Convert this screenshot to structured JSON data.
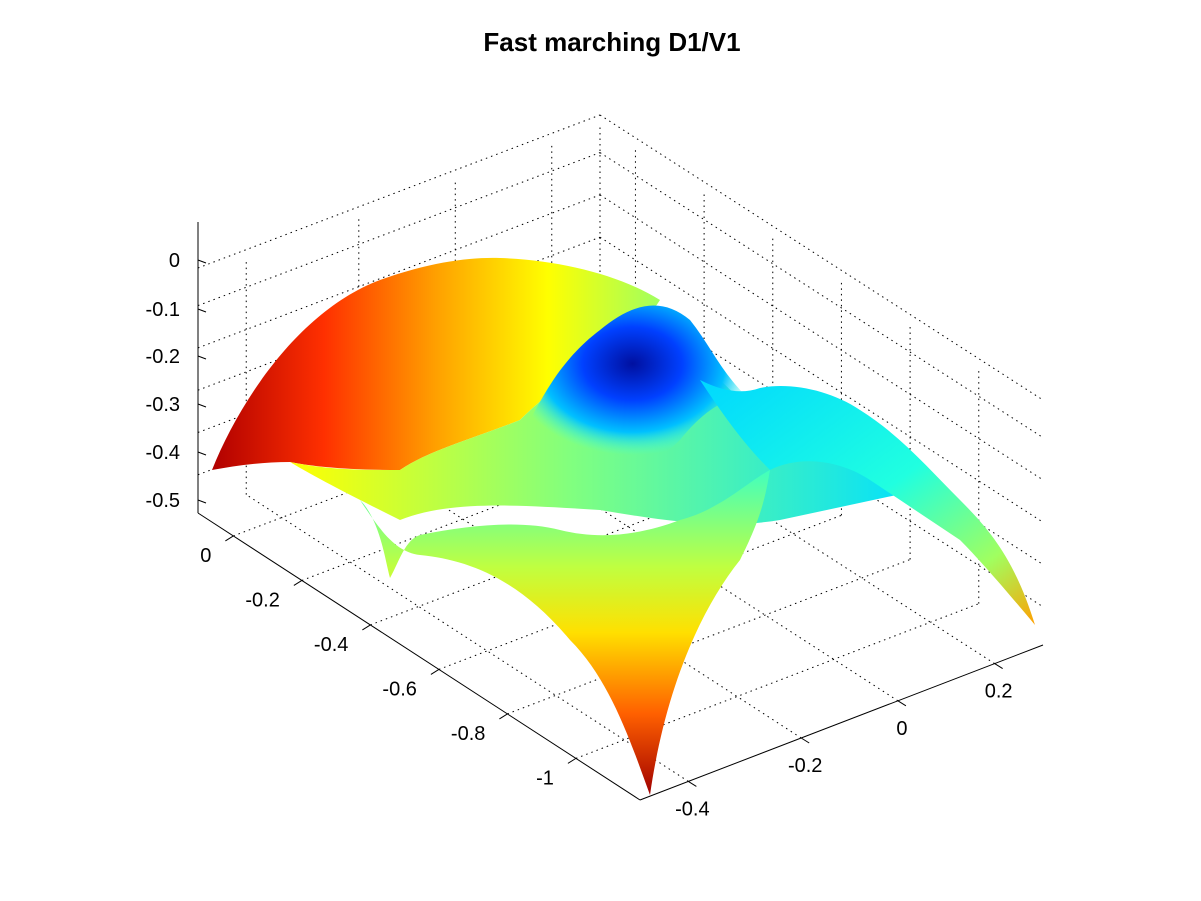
{
  "chart_data": {
    "type": "surface",
    "title": "Fast marching D1/V1",
    "xlabel": "",
    "ylabel": "",
    "zlabel": "",
    "colormap": "jet",
    "grid": true,
    "x_ticks": [
      "-0.4",
      "-0.2",
      "0",
      "0.2"
    ],
    "y_ticks": [
      "0",
      "-0.2",
      "-0.4",
      "-0.6",
      "-0.8",
      "-1"
    ],
    "z_ticks": [
      "0",
      "-0.1",
      "-0.2",
      "-0.3",
      "-0.4",
      "-0.5"
    ],
    "xlim": [
      -0.5,
      0.35
    ],
    "ylim": [
      -1.1,
      0.1
    ],
    "zlim": [
      -0.55,
      0.05
    ],
    "surface": {
      "description_values": [
        {
          "x": -0.45,
          "y": 0.05,
          "z": -0.44
        },
        {
          "x": 0.0,
          "y": -0.45,
          "z": -0.05
        },
        {
          "x": 0.33,
          "y": -0.45,
          "z": -0.42
        },
        {
          "x": -0.45,
          "y": -1.05,
          "z": -0.52
        },
        {
          "x": 0.0,
          "y": -0.5,
          "z": -0.3
        }
      ]
    }
  }
}
